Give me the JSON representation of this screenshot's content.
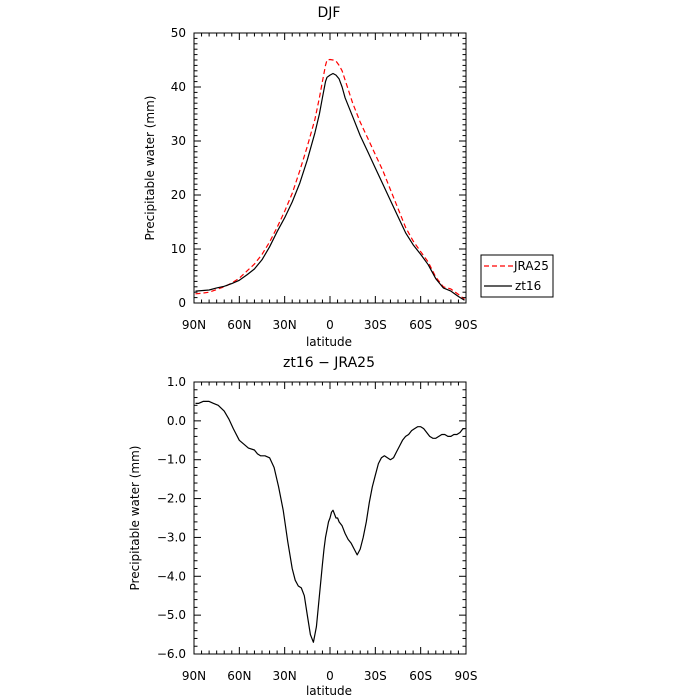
{
  "chart_data": [
    {
      "type": "line",
      "title": "DJF",
      "xlabel": "latitude",
      "ylabel": "Precipitable water (mm)",
      "xlim": [
        90,
        -90
      ],
      "ylim": [
        0,
        50
      ],
      "xticks": [
        90,
        60,
        30,
        0,
        -30,
        -60,
        -90
      ],
      "xticklabels": [
        "90N",
        "60N",
        "30N",
        "0",
        "30S",
        "60S",
        "90S"
      ],
      "yticks": [
        0,
        10,
        20,
        30,
        40,
        50
      ],
      "yticklabels": [
        "0",
        "10",
        "20",
        "30",
        "40",
        "50"
      ],
      "legend_position": "right",
      "series": [
        {
          "name": "JRA25",
          "color": "#ff0000",
          "dash": "dashed",
          "x": [
            89,
            85,
            80,
            75,
            70,
            65,
            60,
            55,
            50,
            45,
            40,
            35,
            30,
            25,
            20,
            15,
            10,
            7,
            5,
            3,
            2,
            0,
            -2,
            -4,
            -6,
            -8,
            -10,
            -15,
            -20,
            -25,
            -30,
            -35,
            -40,
            -45,
            -50,
            -55,
            -60,
            -65,
            -70,
            -75,
            -80,
            -85,
            -89
          ],
          "y": [
            1.7,
            1.8,
            2.0,
            2.5,
            3.0,
            3.7,
            4.6,
            5.9,
            7.2,
            9.0,
            11.3,
            14.0,
            17.0,
            20.3,
            24.5,
            29.0,
            34.0,
            38.0,
            41.0,
            44.0,
            45.0,
            45.1,
            45.0,
            44.8,
            44.0,
            43.0,
            41.3,
            37.0,
            33.5,
            30.5,
            27.5,
            24.5,
            21.0,
            17.5,
            14.0,
            11.5,
            9.5,
            7.6,
            4.8,
            3.0,
            2.6,
            1.6,
            0.7
          ]
        },
        {
          "name": "zt16",
          "color": "#000000",
          "dash": "solid",
          "x": [
            89,
            85,
            80,
            75,
            70,
            65,
            60,
            55,
            50,
            45,
            40,
            35,
            30,
            25,
            20,
            15,
            10,
            7,
            5,
            3,
            2,
            0,
            -2,
            -4,
            -6,
            -8,
            -10,
            -15,
            -20,
            -25,
            -30,
            -35,
            -40,
            -45,
            -50,
            -55,
            -60,
            -65,
            -70,
            -75,
            -80,
            -85,
            -89
          ],
          "y": [
            2.2,
            2.3,
            2.4,
            2.8,
            3.1,
            3.6,
            4.2,
            5.2,
            6.3,
            8.0,
            10.4,
            13.2,
            15.8,
            18.7,
            22.2,
            26.5,
            31.5,
            35.0,
            38.0,
            41.0,
            41.8,
            42.2,
            42.5,
            42.2,
            41.5,
            40.0,
            38.0,
            34.5,
            31.0,
            28.0,
            25.0,
            22.0,
            19.0,
            16.0,
            13.0,
            10.8,
            9.0,
            7.1,
            4.5,
            2.8,
            2.2,
            1.2,
            0.5
          ]
        }
      ]
    },
    {
      "type": "line",
      "title": "zt16 − JRA25",
      "xlabel": "latitude",
      "ylabel": "Precipitable water (mm)",
      "xlim": [
        90,
        -90
      ],
      "ylim": [
        -6,
        1
      ],
      "xticks": [
        90,
        60,
        30,
        0,
        -30,
        -60,
        -90
      ],
      "xticklabels": [
        "90N",
        "60N",
        "30N",
        "0",
        "30S",
        "60S",
        "90S"
      ],
      "yticks": [
        1,
        0,
        -1,
        -2,
        -3,
        -4,
        -5,
        -6
      ],
      "yticklabels": [
        "1.0",
        "0.0",
        "−1.0",
        "−2.0",
        "−3.0",
        "−4.0",
        "−5.0",
        "−6.0"
      ],
      "series": [
        {
          "color": "#000000",
          "dash": "solid",
          "x": [
            89,
            87,
            84,
            80,
            77,
            74,
            70,
            67,
            64,
            60,
            57,
            54,
            50,
            48,
            46,
            43,
            40,
            37,
            34,
            31,
            28,
            25,
            23,
            21,
            19,
            17,
            15,
            13,
            11,
            9,
            8,
            7,
            6,
            5,
            4,
            3,
            2,
            1,
            0,
            -1,
            -2,
            -3,
            -4,
            -5,
            -6,
            -8,
            -10,
            -12,
            -14,
            -16,
            -18,
            -20,
            -22,
            -24,
            -26,
            -28,
            -30,
            -32,
            -34,
            -36,
            -38,
            -40,
            -42,
            -44,
            -46,
            -48,
            -50,
            -52,
            -54,
            -56,
            -58,
            -60,
            -62,
            -64,
            -66,
            -68,
            -70,
            -72,
            -74,
            -76,
            -78,
            -80,
            -82,
            -84,
            -86,
            -88,
            -89
          ],
          "y": [
            0.45,
            0.45,
            0.5,
            0.5,
            0.45,
            0.4,
            0.25,
            0.05,
            -0.2,
            -0.5,
            -0.6,
            -0.7,
            -0.75,
            -0.85,
            -0.9,
            -0.9,
            -0.95,
            -1.2,
            -1.7,
            -2.3,
            -3.1,
            -3.8,
            -4.1,
            -4.25,
            -4.3,
            -4.5,
            -5.0,
            -5.5,
            -5.7,
            -5.3,
            -4.9,
            -4.5,
            -4.1,
            -3.7,
            -3.3,
            -3.0,
            -2.8,
            -2.6,
            -2.5,
            -2.35,
            -2.3,
            -2.4,
            -2.5,
            -2.5,
            -2.6,
            -2.7,
            -2.9,
            -3.05,
            -3.15,
            -3.3,
            -3.45,
            -3.3,
            -3.0,
            -2.6,
            -2.1,
            -1.7,
            -1.4,
            -1.1,
            -0.95,
            -0.9,
            -0.95,
            -1.0,
            -0.95,
            -0.8,
            -0.65,
            -0.5,
            -0.4,
            -0.35,
            -0.25,
            -0.2,
            -0.15,
            -0.15,
            -0.2,
            -0.3,
            -0.4,
            -0.45,
            -0.45,
            -0.4,
            -0.35,
            -0.35,
            -0.4,
            -0.4,
            -0.35,
            -0.35,
            -0.3,
            -0.2,
            -0.2
          ]
        }
      ]
    }
  ]
}
